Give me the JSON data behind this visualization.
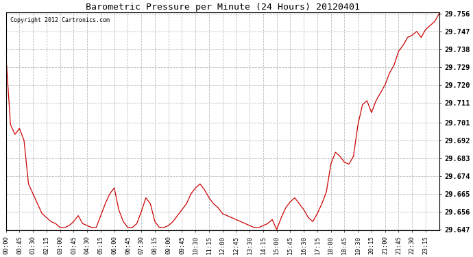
{
  "title": "Barometric Pressure per Minute (24 Hours) 20120401",
  "copyright": "Copyright 2012 Cartronics.com",
  "line_color": "#cc0000",
  "background_color": "#ffffff",
  "grid_color": "#bbbbbb",
  "ylim": [
    29.647,
    29.756
  ],
  "yticks": [
    29.647,
    29.656,
    29.665,
    29.674,
    29.683,
    29.692,
    29.701,
    29.711,
    29.72,
    29.729,
    29.738,
    29.747,
    29.756
  ],
  "xtick_labels": [
    "00:00",
    "00:45",
    "01:30",
    "02:15",
    "03:00",
    "03:45",
    "04:30",
    "05:15",
    "06:00",
    "06:45",
    "07:30",
    "08:15",
    "09:00",
    "09:45",
    "10:30",
    "11:15",
    "12:00",
    "12:45",
    "13:30",
    "14:15",
    "15:00",
    "15:45",
    "16:30",
    "17:15",
    "18:00",
    "18:45",
    "19:30",
    "20:15",
    "21:00",
    "21:45",
    "22:30",
    "23:15"
  ],
  "key_points": [
    [
      0,
      29.735
    ],
    [
      15,
      29.7
    ],
    [
      30,
      29.695
    ],
    [
      45,
      29.698
    ],
    [
      60,
      29.692
    ],
    [
      75,
      29.67
    ],
    [
      90,
      29.665
    ],
    [
      105,
      29.66
    ],
    [
      120,
      29.655
    ],
    [
      135,
      29.653
    ],
    [
      150,
      29.651
    ],
    [
      165,
      29.65
    ],
    [
      180,
      29.648
    ],
    [
      195,
      29.648
    ],
    [
      210,
      29.649
    ],
    [
      225,
      29.651
    ],
    [
      240,
      29.654
    ],
    [
      255,
      29.65
    ],
    [
      270,
      29.649
    ],
    [
      285,
      29.648
    ],
    [
      300,
      29.648
    ],
    [
      315,
      29.654
    ],
    [
      330,
      29.66
    ],
    [
      345,
      29.665
    ],
    [
      360,
      29.668
    ],
    [
      375,
      29.657
    ],
    [
      390,
      29.651
    ],
    [
      405,
      29.648
    ],
    [
      420,
      29.648
    ],
    [
      435,
      29.65
    ],
    [
      450,
      29.656
    ],
    [
      465,
      29.663
    ],
    [
      480,
      29.66
    ],
    [
      495,
      29.651
    ],
    [
      510,
      29.648
    ],
    [
      525,
      29.648
    ],
    [
      540,
      29.649
    ],
    [
      555,
      29.651
    ],
    [
      570,
      29.654
    ],
    [
      585,
      29.657
    ],
    [
      600,
      29.66
    ],
    [
      615,
      29.665
    ],
    [
      630,
      29.668
    ],
    [
      645,
      29.67
    ],
    [
      660,
      29.667
    ],
    [
      675,
      29.663
    ],
    [
      690,
      29.66
    ],
    [
      705,
      29.658
    ],
    [
      720,
      29.655
    ],
    [
      735,
      29.654
    ],
    [
      750,
      29.653
    ],
    [
      765,
      29.652
    ],
    [
      780,
      29.651
    ],
    [
      795,
      29.65
    ],
    [
      810,
      29.649
    ],
    [
      825,
      29.648
    ],
    [
      840,
      29.648
    ],
    [
      855,
      29.649
    ],
    [
      870,
      29.65
    ],
    [
      885,
      29.652
    ],
    [
      900,
      29.647
    ],
    [
      915,
      29.653
    ],
    [
      930,
      29.658
    ],
    [
      945,
      29.661
    ],
    [
      960,
      29.663
    ],
    [
      975,
      29.66
    ],
    [
      990,
      29.657
    ],
    [
      1005,
      29.653
    ],
    [
      1020,
      29.651
    ],
    [
      1035,
      29.655
    ],
    [
      1050,
      29.66
    ],
    [
      1065,
      29.666
    ],
    [
      1080,
      29.68
    ],
    [
      1095,
      29.686
    ],
    [
      1110,
      29.684
    ],
    [
      1125,
      29.681
    ],
    [
      1140,
      29.68
    ],
    [
      1155,
      29.684
    ],
    [
      1170,
      29.7
    ],
    [
      1185,
      29.71
    ],
    [
      1200,
      29.712
    ],
    [
      1215,
      29.706
    ],
    [
      1230,
      29.712
    ],
    [
      1245,
      29.716
    ],
    [
      1260,
      29.72
    ],
    [
      1275,
      29.726
    ],
    [
      1290,
      29.73
    ],
    [
      1305,
      29.737
    ],
    [
      1320,
      29.74
    ],
    [
      1335,
      29.744
    ],
    [
      1350,
      29.745
    ],
    [
      1365,
      29.747
    ],
    [
      1380,
      29.744
    ],
    [
      1395,
      29.748
    ],
    [
      1410,
      29.75
    ],
    [
      1425,
      29.752
    ],
    [
      1440,
      29.756
    ]
  ]
}
